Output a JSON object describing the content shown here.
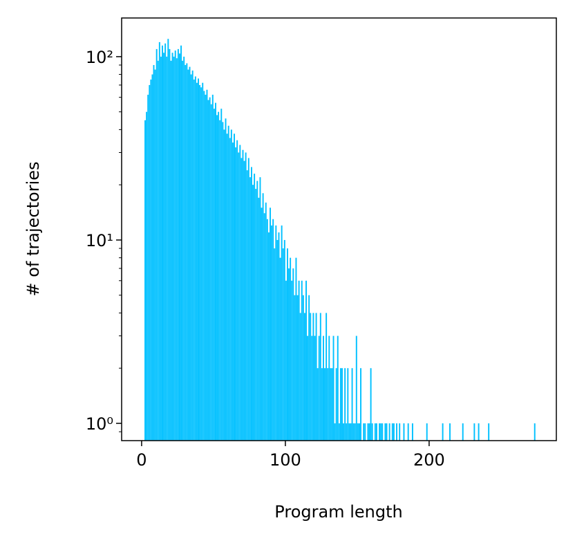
{
  "chart_data": {
    "type": "histogram",
    "xlabel": "Program length",
    "ylabel": "# of trajectories",
    "color": "#00c0ff",
    "log_y": true,
    "xlim": [
      -13.9,
      288.5
    ],
    "xticks": [
      0,
      100,
      200
    ],
    "ylim": [
      0.805,
      162.5
    ],
    "yticks": [
      {
        "value": 1,
        "label": "10⁰"
      },
      {
        "value": 10,
        "label": "10¹"
      },
      {
        "value": 100,
        "label": "10²"
      }
    ],
    "yminorticks": [
      0.9,
      2,
      3,
      4,
      5,
      6,
      7,
      8,
      9,
      20,
      30,
      40,
      50,
      60,
      70,
      80,
      90
    ],
    "bins": [
      2,
      3,
      4,
      5,
      6,
      7,
      8,
      9,
      10,
      11,
      12,
      13,
      14,
      15,
      16,
      17,
      18,
      19,
      20,
      21,
      22,
      23,
      24,
      25,
      26,
      27,
      28,
      29,
      30,
      31,
      32,
      33,
      34,
      35,
      36,
      37,
      38,
      39,
      40,
      41,
      42,
      43,
      44,
      45,
      46,
      47,
      48,
      49,
      50,
      51,
      52,
      53,
      54,
      55,
      56,
      57,
      58,
      59,
      60,
      61,
      62,
      63,
      64,
      65,
      66,
      67,
      68,
      69,
      70,
      71,
      72,
      73,
      74,
      75,
      76,
      77,
      78,
      79,
      80,
      81,
      82,
      83,
      84,
      85,
      86,
      87,
      88,
      89,
      90,
      91,
      92,
      93,
      94,
      95,
      96,
      97,
      98,
      99,
      100,
      101,
      102,
      103,
      104,
      105,
      106,
      107,
      108,
      109,
      110,
      111,
      112,
      113,
      114,
      115,
      116,
      117,
      118,
      119,
      120,
      121,
      122,
      123,
      124,
      125,
      126,
      127,
      128,
      129,
      130,
      131,
      132,
      133,
      134,
      135,
      136,
      137,
      138,
      139,
      140,
      141,
      142,
      143,
      144,
      145,
      146,
      147,
      148,
      149,
      150,
      151,
      152,
      153,
      154,
      155,
      156,
      157,
      158,
      159,
      160,
      161,
      162,
      163,
      164,
      165,
      166,
      167,
      168,
      169,
      170,
      171,
      172,
      173,
      174,
      175,
      176,
      177,
      178,
      179,
      180,
      181,
      182,
      183,
      184,
      185,
      186,
      187,
      188,
      189,
      190,
      191,
      192,
      193,
      194,
      195,
      196,
      197,
      198,
      199,
      200,
      201,
      202,
      203,
      204,
      205,
      206,
      207,
      208,
      209,
      210,
      211,
      212,
      213,
      214,
      215,
      216,
      217,
      218,
      219,
      220,
      221,
      222,
      223,
      224,
      225,
      226,
      227,
      228,
      229,
      230,
      231,
      232,
      233,
      234,
      235,
      236,
      237,
      238,
      239,
      240,
      241,
      242,
      243,
      244,
      245,
      246,
      247,
      248,
      249,
      250,
      251,
      252,
      253,
      254,
      255,
      256,
      257,
      258,
      259,
      260,
      261,
      262,
      263,
      264,
      265,
      266,
      267,
      268,
      269,
      270,
      271,
      272,
      273,
      274,
      275
    ],
    "values": [
      45,
      50,
      62,
      70,
      75,
      80,
      90,
      85,
      110,
      95,
      120,
      100,
      115,
      105,
      118,
      100,
      125,
      110,
      95,
      105,
      100,
      108,
      98,
      110,
      104,
      115,
      95,
      100,
      90,
      92,
      85,
      88,
      80,
      84,
      75,
      78,
      72,
      76,
      70,
      68,
      72,
      65,
      62,
      66,
      58,
      60,
      55,
      62,
      52,
      56,
      48,
      50,
      45,
      52,
      44,
      40,
      46,
      38,
      42,
      36,
      40,
      34,
      38,
      32,
      35,
      30,
      33,
      28,
      31,
      27,
      30,
      24,
      28,
      22,
      25,
      20,
      23,
      19,
      21,
      17,
      22,
      15,
      18,
      14,
      16,
      13,
      11,
      15,
      12,
      13,
      9,
      12,
      10,
      11,
      8,
      12,
      9,
      10,
      6,
      9,
      7,
      8,
      6,
      7,
      5,
      8,
      5,
      6,
      4,
      6,
      5,
      4,
      6,
      3,
      5,
      4,
      3,
      4,
      3,
      4,
      2,
      3,
      4,
      2,
      3,
      2,
      4,
      2,
      3,
      2,
      2,
      3,
      1,
      2,
      3,
      1,
      2,
      2,
      1,
      2,
      1,
      2,
      1,
      1,
      2,
      1,
      1,
      3,
      1,
      1,
      2,
      0,
      1,
      1,
      0,
      1,
      1,
      2,
      1,
      0,
      1,
      1,
      0,
      1,
      1,
      1,
      0,
      1,
      1,
      0,
      1,
      0,
      1,
      1,
      0,
      1,
      0,
      1,
      0,
      0,
      1,
      0,
      0,
      1,
      0,
      0,
      1,
      0,
      0,
      0,
      0,
      0,
      0,
      0,
      0,
      0,
      1,
      0,
      0,
      0,
      0,
      0,
      0,
      0,
      0,
      0,
      0,
      1,
      0,
      0,
      0,
      0,
      1,
      0,
      0,
      0,
      0,
      0,
      0,
      0,
      0,
      1,
      0,
      0,
      0,
      0,
      0,
      0,
      0,
      1,
      0,
      0,
      1,
      0,
      0,
      0,
      0,
      0,
      0,
      1,
      0,
      0,
      0,
      0,
      0,
      0,
      0,
      0,
      0,
      0,
      0,
      0,
      0,
      0,
      0,
      0,
      0,
      0,
      0,
      0,
      0,
      0,
      0,
      0,
      0,
      0,
      0,
      0,
      0,
      0,
      0,
      1,
      0
    ]
  }
}
